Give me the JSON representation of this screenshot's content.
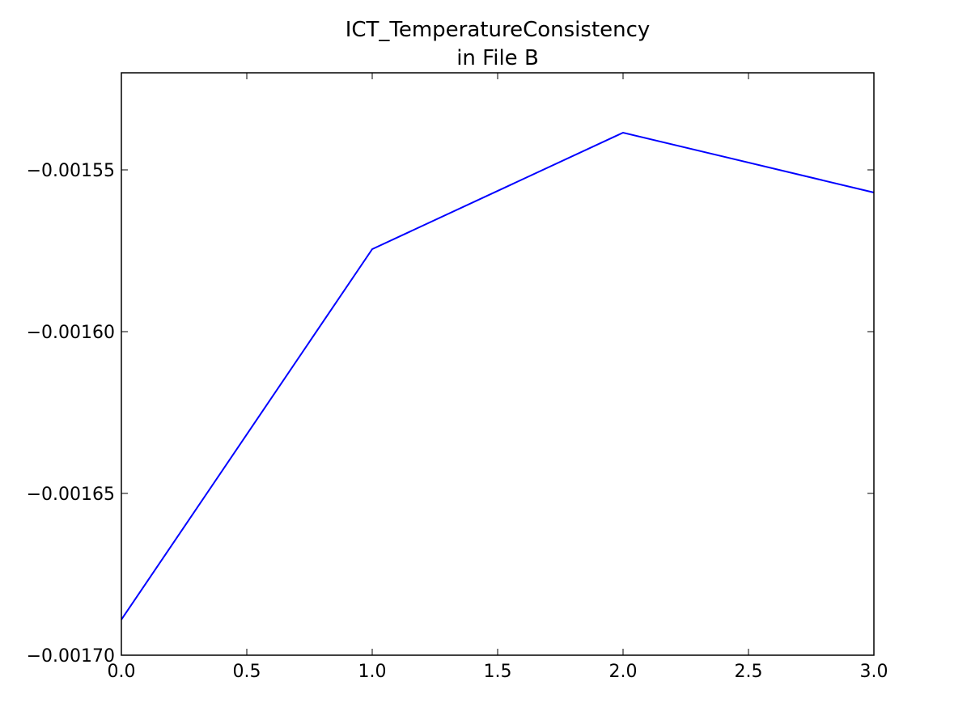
{
  "chart_data": {
    "type": "line",
    "title": "ICT_TemperatureConsistency",
    "subtitle": "in File B",
    "x": [
      0,
      1,
      2,
      3
    ],
    "series": [
      {
        "color": "#0000ff",
        "values": [
          -0.001689,
          -0.0015745,
          -0.0015385,
          -0.001557
        ]
      }
    ],
    "xlim": [
      0,
      3
    ],
    "xticks": [
      {
        "value": 0,
        "label": "0.0"
      },
      0.5,
      {
        "value": 1,
        "label": "1.0"
      },
      1.5,
      {
        "value": 2,
        "label": "2.0"
      },
      2.5,
      {
        "value": 3,
        "label": "3.0"
      }
    ],
    "ylim": [
      -0.0017,
      -0.00152
    ],
    "yticks": [
      {
        "value": -0.0017,
        "label": "−0.00170"
      },
      {
        "value": -0.00165,
        "label": "−0.00165"
      },
      {
        "value": -0.0016,
        "label": "−0.00160"
      },
      {
        "value": -0.00155,
        "label": "−0.00155"
      }
    ],
    "grid": false
  }
}
